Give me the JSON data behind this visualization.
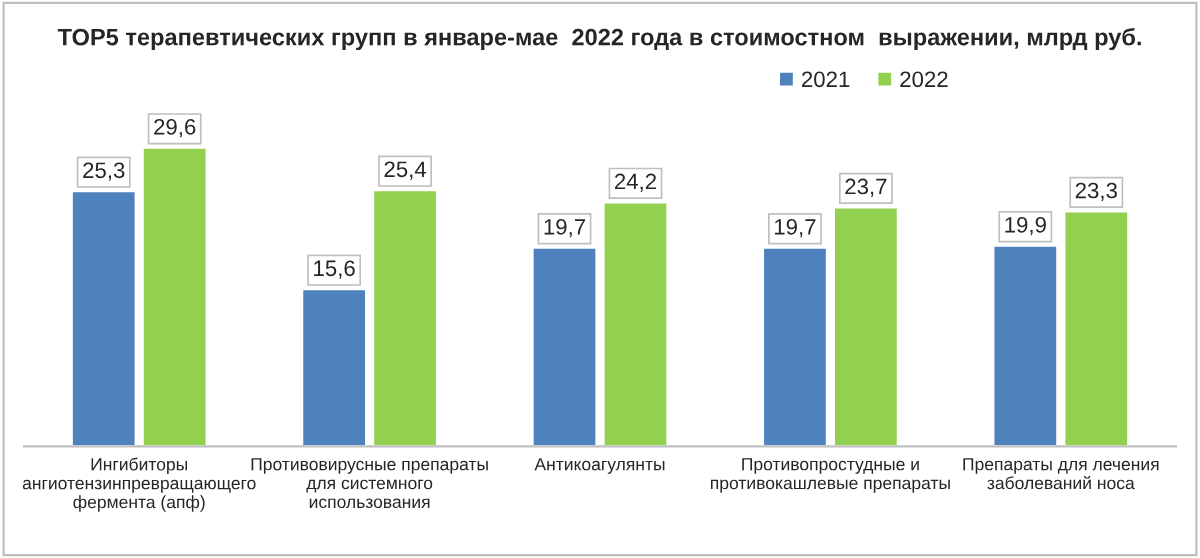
{
  "chart_data": {
    "type": "bar",
    "title": "TOP5 терапевтических групп в январе-мае  2022 года в стоимостном  выражении, млрд руб.",
    "categories": [
      "Ингибиторы\nангиотензинпревращающего\nфермента (апф)",
      "Противовирусные препараты\nдля системного\nиспользования",
      "Антикоагулянты",
      "Противопростудные и\nпротивокашлевые препараты",
      "Препараты для лечения\nзаболеваний носа"
    ],
    "series": [
      {
        "name": "2021",
        "color": "#4f81bd",
        "values": [
          25.3,
          15.6,
          19.7,
          19.7,
          19.9
        ],
        "value_labels": [
          "25,3",
          "15,6",
          "19,7",
          "19,7",
          "19,9"
        ]
      },
      {
        "name": "2022",
        "color": "#92d050",
        "values": [
          29.6,
          25.4,
          24.2,
          23.7,
          23.3
        ],
        "value_labels": [
          "29,6",
          "25,4",
          "24,2",
          "23,7",
          "23,3"
        ]
      }
    ],
    "legend": "top right"
  }
}
